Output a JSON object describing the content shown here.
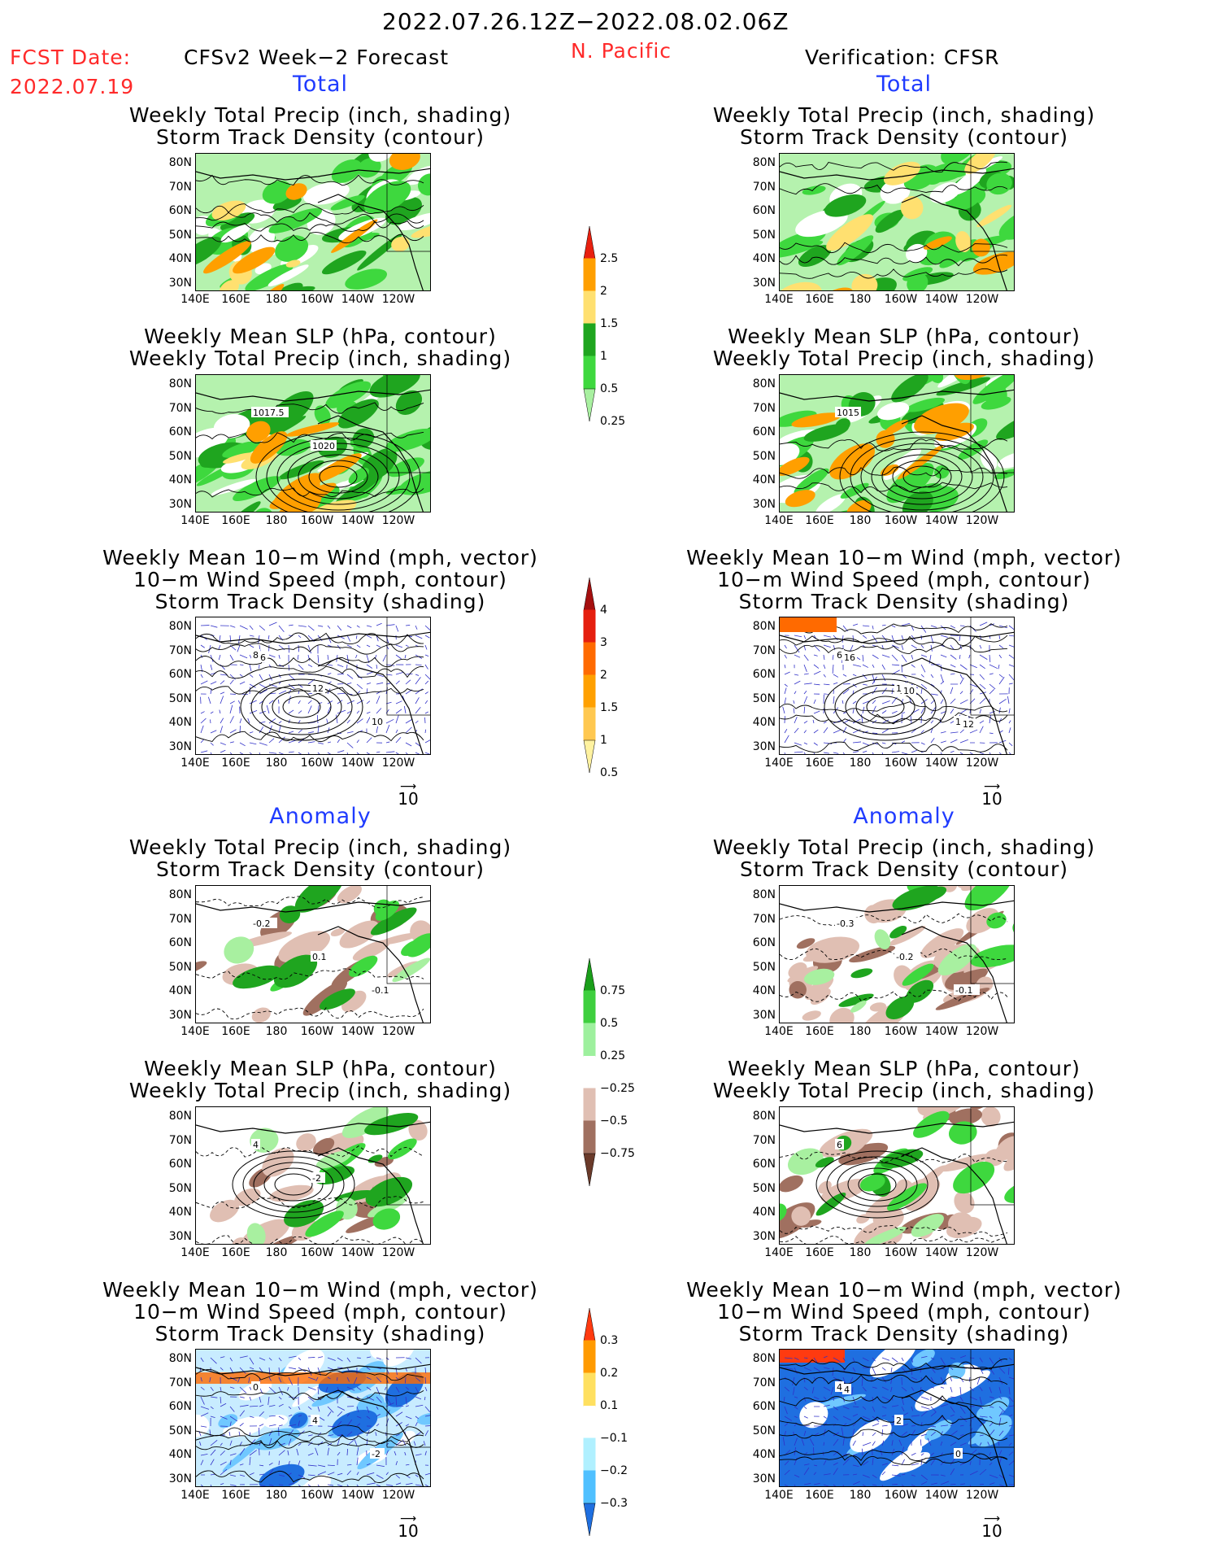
{
  "header": {
    "period": "2022.07.26.12Z−2022.08.02.06Z",
    "fcst_label": "FCST Date:",
    "fcst_date": "2022.07.19",
    "model": "CFSv2 Week−2 Forecast",
    "region": "N. Pacific",
    "verification": "Verification: CFSR"
  },
  "sections": {
    "total": "Total",
    "anomaly": "Anomaly"
  },
  "titles": {
    "precip_storm": [
      "Weekly Total Precip (inch, shading)",
      "Storm Track Density (contour)"
    ],
    "slp_precip": [
      "Weekly Mean SLP (hPa, contour)",
      "Weekly Total Precip (inch, shading)"
    ],
    "wind": [
      "Weekly Mean 10−m Wind (mph, vector)",
      "10−m Wind Speed (mph, contour)",
      "Storm Track Density (shading)"
    ]
  },
  "axes": {
    "lat": [
      "80N",
      "70N",
      "60N",
      "50N",
      "40N",
      "30N"
    ],
    "lon": [
      "140E",
      "160E",
      "180",
      "160W",
      "140W",
      "120W"
    ]
  },
  "vector_ref": "10",
  "contour_labels": {
    "total_slp_fcst": [
      "1017.5",
      "1020"
    ],
    "total_slp_ver": [
      "1015"
    ],
    "total_wind_fcst": [
      "8",
      "12",
      "10",
      "6"
    ],
    "total_wind_ver": [
      "6",
      "12",
      "12",
      "16",
      "10",
      "12"
    ],
    "anom_precip_fcst": [
      "-0.2",
      "0.1",
      "-0.1"
    ],
    "anom_precip_ver": [
      "-0.3",
      "-0.2",
      "-0.1"
    ],
    "anom_slp_fcst": [
      "4",
      "-2"
    ],
    "anom_slp_ver": [
      "6"
    ],
    "anom_wind_fcst": [
      "0",
      "4",
      "-2"
    ],
    "anom_wind_ver": [
      "4",
      "2",
      "0",
      "4"
    ]
  },
  "colorbars": {
    "total_precip": {
      "labels": [
        "2.5",
        "2",
        "1.5",
        "1",
        "0.5",
        "0.25"
      ],
      "colors": [
        "#e8200f",
        "#ff9f00",
        "#ffe070",
        "#1fa51f",
        "#3ed83e",
        "#a8f0a0"
      ]
    },
    "total_storm": {
      "labels": [
        "4",
        "3",
        "2",
        "1.5",
        "1",
        "0.5"
      ],
      "colors": [
        "#a50f0f",
        "#e51f0f",
        "#ff6a00",
        "#ffa000",
        "#ffc850",
        "#fff2a0"
      ]
    },
    "anom_precip": {
      "labels": [
        "0.75",
        "0.5",
        "0.25",
        "−0.25",
        "−0.5",
        "−0.75"
      ],
      "colors": [
        "#1a9e1a",
        "#3ecf3e",
        "#9ef09e",
        "#ffffff",
        "#e0bfb3",
        "#a07060",
        "#6a3a2a"
      ]
    },
    "anom_storm": {
      "labels": [
        "0.3",
        "0.2",
        "0.1",
        "−0.1",
        "−0.2",
        "−0.3"
      ],
      "colors": [
        "#ff3a10",
        "#ff9a00",
        "#ffe060",
        "#ffffff",
        "#b0f0ff",
        "#50c0ff",
        "#1f6fe0"
      ]
    }
  },
  "colors": {
    "precip_light": "#a8f0a0",
    "precip_mid": "#3ed83e",
    "precip_dark": "#1fa51f",
    "precip_yellow": "#ffe070",
    "precip_orange": "#ff9f00",
    "dry_light": "#e0bfb3",
    "dry_dark": "#a07060",
    "wind_vector": "#3030c8",
    "storm_blue": "#1f6fe0",
    "storm_lightblue": "#70c8ff",
    "storm_orange": "#ff6a00"
  }
}
